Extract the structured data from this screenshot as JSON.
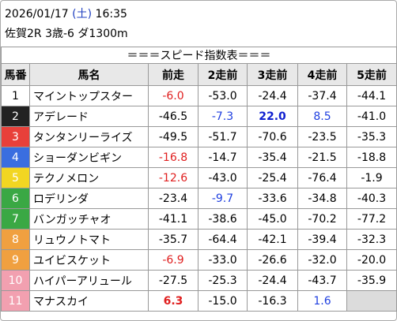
{
  "header": {
    "date": "2026/01/17",
    "weekday": "(土)",
    "time": "16:35",
    "race": "佐賀2R 3歳-6 ダ1300m"
  },
  "table": {
    "title": "＝＝＝スピード指数表＝＝＝",
    "columns": [
      "馬番",
      "馬名",
      "前走",
      "2走前",
      "3走前",
      "4走前",
      "5走前"
    ],
    "rows": [
      {
        "number": "1",
        "frame_color": "#ffffff",
        "frame_text_color": "#000000",
        "name": "マイントップスター",
        "scores": [
          {
            "text": "-6.0",
            "color": "#e02020"
          },
          {
            "text": "-53.0"
          },
          {
            "text": "-24.4"
          },
          {
            "text": "-37.4"
          },
          {
            "text": "-44.1"
          }
        ]
      },
      {
        "number": "2",
        "frame_color": "#222222",
        "frame_text_color": "#ffffff",
        "name": "アデレード",
        "scores": [
          {
            "text": "-46.5"
          },
          {
            "text": "-7.3",
            "color": "#2040e0"
          },
          {
            "text": "22.0",
            "color": "#1020d0",
            "bold": true
          },
          {
            "text": "8.5",
            "color": "#2040e0"
          },
          {
            "text": "-41.0"
          }
        ]
      },
      {
        "number": "3",
        "frame_color": "#e8403a",
        "frame_text_color": "#ffffff",
        "name": "タンタンリーライズ",
        "scores": [
          {
            "text": "-49.5"
          },
          {
            "text": "-51.7"
          },
          {
            "text": "-70.6"
          },
          {
            "text": "-23.5"
          },
          {
            "text": "-35.3"
          }
        ]
      },
      {
        "number": "4",
        "frame_color": "#3a6ee0",
        "frame_text_color": "#ffffff",
        "name": "ショーダンビギン",
        "scores": [
          {
            "text": "-16.8",
            "color": "#e02020"
          },
          {
            "text": "-14.7"
          },
          {
            "text": "-35.4"
          },
          {
            "text": "-21.5"
          },
          {
            "text": "-18.8"
          }
        ]
      },
      {
        "number": "5",
        "frame_color": "#f2d622",
        "frame_text_color": "#ffffff",
        "name": "テクノメロン",
        "scores": [
          {
            "text": "-12.6",
            "color": "#e02020"
          },
          {
            "text": "-43.0"
          },
          {
            "text": "-25.4"
          },
          {
            "text": "-76.4"
          },
          {
            "text": "-1.9"
          }
        ]
      },
      {
        "number": "6",
        "frame_color": "#3aa844",
        "frame_text_color": "#ffffff",
        "name": "ロデリンダ",
        "scores": [
          {
            "text": "-23.4"
          },
          {
            "text": "-9.7",
            "color": "#2040e0"
          },
          {
            "text": "-33.6"
          },
          {
            "text": "-34.8"
          },
          {
            "text": "-40.3"
          }
        ]
      },
      {
        "number": "7",
        "frame_color": "#3aa844",
        "frame_text_color": "#ffffff",
        "name": "バンガッチャオ",
        "scores": [
          {
            "text": "-41.1"
          },
          {
            "text": "-38.6"
          },
          {
            "text": "-45.0"
          },
          {
            "text": "-70.2"
          },
          {
            "text": "-77.2"
          }
        ]
      },
      {
        "number": "8",
        "frame_color": "#f0a040",
        "frame_text_color": "#ffffff",
        "name": "リュウノトマト",
        "scores": [
          {
            "text": "-35.7"
          },
          {
            "text": "-64.4"
          },
          {
            "text": "-42.1"
          },
          {
            "text": "-39.4"
          },
          {
            "text": "-32.3"
          }
        ]
      },
      {
        "number": "9",
        "frame_color": "#f0a040",
        "frame_text_color": "#ffffff",
        "name": "ユイビスケット",
        "scores": [
          {
            "text": "-6.9",
            "color": "#e02020"
          },
          {
            "text": "-33.0"
          },
          {
            "text": "-26.6"
          },
          {
            "text": "-32.0"
          },
          {
            "text": "-20.0"
          }
        ]
      },
      {
        "number": "10",
        "frame_color": "#f2a0b0",
        "frame_text_color": "#ffffff",
        "name": "ハイパーアリュール",
        "scores": [
          {
            "text": "-27.5"
          },
          {
            "text": "-25.3"
          },
          {
            "text": "-24.4"
          },
          {
            "text": "-43.7"
          },
          {
            "text": "-35.9"
          }
        ]
      },
      {
        "number": "11",
        "frame_color": "#f2a0b0",
        "frame_text_color": "#ffffff",
        "name": "マナスカイ",
        "scores": [
          {
            "text": "6.3",
            "color": "#e02020",
            "bold": true
          },
          {
            "text": "-15.0"
          },
          {
            "text": "-16.3"
          },
          {
            "text": "1.6",
            "color": "#2040e0"
          },
          null
        ]
      }
    ]
  }
}
